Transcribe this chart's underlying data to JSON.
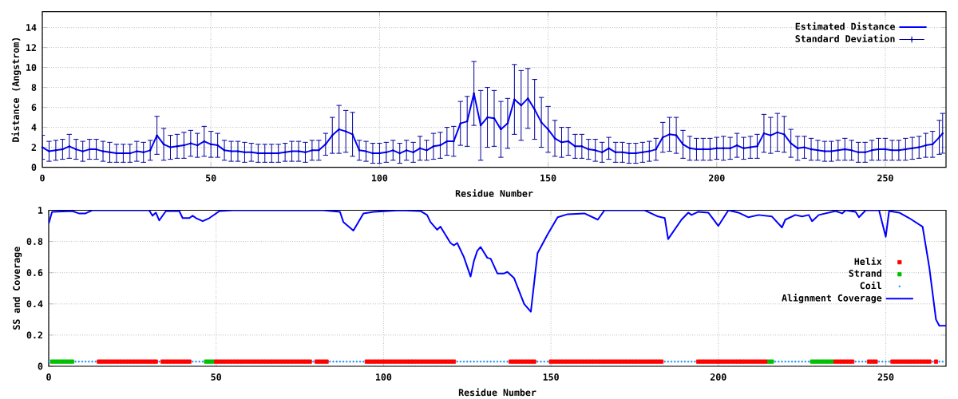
{
  "chart_data": [
    {
      "type": "line",
      "xlabel": "Residue Number",
      "ylabel": "Distance (Angstrom)",
      "xlim": [
        0,
        268
      ],
      "ylim": [
        0,
        15.6
      ],
      "xticks": [
        0,
        50,
        100,
        150,
        200,
        250
      ],
      "yticks": [
        0,
        2,
        4,
        6,
        8,
        10,
        12,
        14
      ],
      "grid": true,
      "legend": "top right",
      "x": [
        0,
        2,
        4,
        6,
        8,
        10,
        12,
        14,
        16,
        18,
        20,
        22,
        24,
        26,
        28,
        30,
        32,
        34,
        36,
        38,
        40,
        42,
        44,
        46,
        48,
        50,
        52,
        54,
        56,
        58,
        60,
        62,
        64,
        66,
        68,
        70,
        72,
        74,
        76,
        78,
        80,
        82,
        84,
        86,
        88,
        90,
        92,
        94,
        96,
        98,
        100,
        102,
        104,
        106,
        108,
        110,
        112,
        114,
        116,
        118,
        120,
        122,
        124,
        126,
        128,
        130,
        132,
        134,
        136,
        138,
        140,
        142,
        144,
        146,
        148,
        150,
        152,
        154,
        156,
        158,
        160,
        162,
        164,
        166,
        168,
        170,
        172,
        174,
        176,
        178,
        180,
        182,
        184,
        186,
        188,
        190,
        192,
        194,
        196,
        198,
        200,
        202,
        204,
        206,
        208,
        210,
        212,
        214,
        216,
        218,
        220,
        222,
        224,
        226,
        228,
        230,
        232,
        234,
        236,
        238,
        240,
        242,
        244,
        246,
        248,
        250,
        252,
        254,
        256,
        258,
        260,
        262,
        264,
        266,
        267
      ],
      "series": [
        {
          "name": "Estimated Distance",
          "color": "#0000ff",
          "values": [
            2.0,
            1.6,
            1.7,
            1.8,
            2.1,
            1.8,
            1.6,
            1.8,
            1.8,
            1.6,
            1.5,
            1.4,
            1.4,
            1.4,
            1.6,
            1.5,
            1.7,
            3.2,
            2.3,
            2.0,
            2.1,
            2.2,
            2.4,
            2.2,
            2.6,
            2.3,
            2.2,
            1.7,
            1.6,
            1.6,
            1.5,
            1.5,
            1.4,
            1.4,
            1.4,
            1.4,
            1.5,
            1.6,
            1.6,
            1.5,
            1.7,
            1.7,
            2.3,
            3.2,
            3.8,
            3.6,
            3.3,
            1.7,
            1.6,
            1.4,
            1.4,
            1.5,
            1.7,
            1.4,
            1.7,
            1.5,
            1.9,
            1.7,
            2.1,
            2.2,
            2.6,
            2.6,
            4.4,
            4.6,
            7.4,
            4.2,
            5.0,
            4.9,
            3.8,
            4.4,
            6.8,
            6.2,
            6.9,
            5.8,
            4.5,
            3.8,
            2.9,
            2.5,
            2.6,
            2.1,
            2.1,
            1.8,
            1.7,
            1.5,
            1.9,
            1.5,
            1.5,
            1.4,
            1.4,
            1.5,
            1.6,
            1.8,
            3.0,
            3.3,
            3.2,
            2.3,
            1.9,
            1.8,
            1.8,
            1.8,
            1.9,
            1.9,
            1.9,
            2.2,
            1.9,
            2.0,
            2.1,
            3.4,
            3.2,
            3.5,
            3.3,
            2.4,
            1.9,
            2.0,
            1.8,
            1.7,
            1.6,
            1.6,
            1.7,
            1.8,
            1.7,
            1.5,
            1.5,
            1.7,
            1.8,
            1.8,
            1.7,
            1.7,
            1.8,
            1.9,
            2.0,
            2.2,
            2.3,
            3.0,
            3.4
          ]
        },
        {
          "name": "Standard Deviation",
          "type": "scatter",
          "marker": "circle",
          "color": "#000099",
          "values": [
            2.0,
            1.6,
            1.7,
            1.8,
            2.1,
            1.8,
            1.6,
            1.8,
            1.8,
            1.6,
            1.5,
            1.4,
            1.4,
            1.4,
            1.6,
            1.5,
            1.7,
            3.2,
            2.3,
            2.0,
            2.1,
            2.2,
            2.4,
            2.2,
            2.6,
            2.3,
            2.2,
            1.7,
            1.6,
            1.6,
            1.5,
            1.5,
            1.4,
            1.4,
            1.4,
            1.4,
            1.5,
            1.6,
            1.6,
            1.5,
            1.7,
            1.7,
            2.3,
            3.2,
            3.8,
            3.6,
            3.3,
            1.7,
            1.6,
            1.4,
            1.4,
            1.5,
            1.7,
            1.4,
            1.7,
            1.5,
            1.9,
            1.7,
            2.1,
            2.2,
            2.6,
            2.6,
            4.4,
            4.6,
            7.4,
            4.2,
            5.0,
            4.9,
            3.8,
            4.4,
            6.8,
            6.2,
            6.9,
            5.8,
            4.5,
            3.8,
            2.9,
            2.5,
            2.6,
            2.1,
            2.1,
            1.8,
            1.7,
            1.5,
            1.9,
            1.5,
            1.5,
            1.4,
            1.4,
            1.5,
            1.6,
            1.8,
            3.0,
            3.3,
            3.2,
            2.3,
            1.9,
            1.8,
            1.8,
            1.8,
            1.9,
            1.9,
            1.9,
            2.2,
            1.9,
            2.0,
            2.1,
            3.4,
            3.2,
            3.5,
            3.3,
            2.4,
            1.9,
            2.0,
            1.8,
            1.7,
            1.6,
            1.6,
            1.7,
            1.8,
            1.7,
            1.5,
            1.5,
            1.7,
            1.8,
            1.8,
            1.7,
            1.7,
            1.8,
            1.9,
            2.0,
            2.2,
            2.3,
            3.0,
            3.4
          ],
          "errors": [
            1.2,
            1.0,
            1.0,
            1.0,
            1.2,
            1.0,
            1.0,
            1.0,
            1.0,
            1.0,
            1.0,
            0.9,
            0.9,
            0.9,
            1.0,
            1.0,
            1.0,
            1.9,
            1.6,
            1.2,
            1.2,
            1.3,
            1.3,
            1.2,
            1.5,
            1.3,
            1.2,
            1.0,
            1.0,
            1.0,
            1.0,
            0.9,
            0.9,
            0.9,
            0.9,
            0.9,
            0.9,
            1.0,
            1.0,
            1.0,
            1.0,
            1.0,
            1.1,
            1.8,
            2.4,
            2.1,
            2.2,
            1.0,
            1.0,
            1.0,
            1.0,
            1.0,
            1.0,
            1.0,
            1.0,
            1.0,
            1.2,
            1.0,
            1.3,
            1.3,
            1.4,
            1.5,
            2.2,
            2.5,
            3.2,
            3.5,
            3.0,
            2.8,
            2.8,
            2.5,
            3.5,
            3.5,
            3.0,
            3.0,
            2.5,
            2.3,
            1.8,
            1.5,
            1.4,
            1.2,
            1.2,
            1.0,
            1.1,
            1.0,
            1.1,
            1.0,
            1.0,
            1.0,
            1.0,
            1.0,
            1.0,
            1.1,
            1.5,
            1.7,
            1.8,
            1.4,
            1.2,
            1.1,
            1.1,
            1.1,
            1.1,
            1.2,
            1.1,
            1.2,
            1.1,
            1.1,
            1.2,
            1.9,
            1.8,
            1.9,
            1.8,
            1.4,
            1.2,
            1.1,
            1.1,
            1.0,
            1.0,
            1.0,
            1.0,
            1.1,
            1.0,
            1.0,
            1.0,
            1.0,
            1.1,
            1.1,
            1.0,
            1.0,
            1.1,
            1.1,
            1.1,
            1.2,
            1.3,
            1.7,
            2.0
          ]
        }
      ]
    },
    {
      "type": "line",
      "xlabel": "Residue Number",
      "ylabel": "SS and Coverage",
      "xlim": [
        0,
        268
      ],
      "ylim": [
        0,
        1
      ],
      "xticks": [
        0,
        50,
        100,
        150,
        200,
        250
      ],
      "yticks": [
        0,
        0.2,
        0.4,
        0.6,
        0.8,
        1
      ],
      "grid": true,
      "legend": "right",
      "series": [
        {
          "name": "Helix",
          "type": "scatter",
          "marker": "square",
          "color": "#ff0000",
          "x": [
            15,
            16,
            17,
            18,
            19,
            20,
            21,
            22,
            23,
            24,
            25,
            26,
            27,
            28,
            29,
            30,
            31,
            32,
            34,
            35,
            36,
            37,
            38,
            39,
            40,
            41,
            42,
            50,
            51,
            52,
            53,
            54,
            55,
            56,
            57,
            58,
            59,
            60,
            61,
            62,
            63,
            64,
            65,
            66,
            67,
            68,
            69,
            70,
            71,
            72,
            73,
            74,
            75,
            76,
            77,
            78,
            80,
            81,
            82,
            83,
            95,
            96,
            97,
            98,
            99,
            100,
            101,
            102,
            103,
            104,
            105,
            106,
            107,
            108,
            109,
            110,
            111,
            112,
            113,
            114,
            115,
            116,
            117,
            118,
            119,
            120,
            121,
            138,
            139,
            140,
            141,
            142,
            143,
            144,
            145,
            150,
            151,
            152,
            153,
            154,
            155,
            156,
            157,
            158,
            159,
            160,
            161,
            162,
            163,
            164,
            165,
            166,
            167,
            168,
            169,
            170,
            171,
            172,
            173,
            174,
            175,
            176,
            177,
            178,
            179,
            180,
            181,
            182,
            183,
            194,
            195,
            196,
            197,
            198,
            199,
            200,
            201,
            202,
            203,
            204,
            205,
            206,
            207,
            208,
            209,
            210,
            211,
            212,
            213,
            214,
            235,
            236,
            237,
            238,
            239,
            240,
            245,
            246,
            247,
            252,
            253,
            254,
            255,
            256,
            257,
            258,
            259,
            260,
            261,
            262,
            263,
            265
          ],
          "values": [
            0.03,
            0.03,
            0.03,
            0.03,
            0.03,
            0.03,
            0.03,
            0.03,
            0.03,
            0.03,
            0.03,
            0.03,
            0.03,
            0.03,
            0.03,
            0.03,
            0.03,
            0.03,
            0.03,
            0.03,
            0.03,
            0.03,
            0.03,
            0.03,
            0.03,
            0.03,
            0.03,
            0.03,
            0.03,
            0.03,
            0.03,
            0.03,
            0.03,
            0.03,
            0.03,
            0.03,
            0.03,
            0.03,
            0.03,
            0.03,
            0.03,
            0.03,
            0.03,
            0.03,
            0.03,
            0.03,
            0.03,
            0.03,
            0.03,
            0.03,
            0.03,
            0.03,
            0.03,
            0.03,
            0.03,
            0.03,
            0.03,
            0.03,
            0.03,
            0.03,
            0.03,
            0.03,
            0.03,
            0.03,
            0.03,
            0.03,
            0.03,
            0.03,
            0.03,
            0.03,
            0.03,
            0.03,
            0.03,
            0.03,
            0.03,
            0.03,
            0.03,
            0.03,
            0.03,
            0.03,
            0.03,
            0.03,
            0.03,
            0.03,
            0.03,
            0.03,
            0.03,
            0.03,
            0.03,
            0.03,
            0.03,
            0.03,
            0.03,
            0.03,
            0.03,
            0.03,
            0.03,
            0.03,
            0.03,
            0.03,
            0.03,
            0.03,
            0.03,
            0.03,
            0.03,
            0.03,
            0.03,
            0.03,
            0.03,
            0.03,
            0.03,
            0.03,
            0.03,
            0.03,
            0.03,
            0.03,
            0.03,
            0.03,
            0.03,
            0.03,
            0.03,
            0.03,
            0.03,
            0.03,
            0.03,
            0.03,
            0.03,
            0.03,
            0.03,
            0.03,
            0.03,
            0.03,
            0.03,
            0.03,
            0.03,
            0.03,
            0.03,
            0.03,
            0.03,
            0.03,
            0.03,
            0.03,
            0.03,
            0.03,
            0.03,
            0.03,
            0.03,
            0.03,
            0.03,
            0.03,
            0.03,
            0.03,
            0.03,
            0.03,
            0.03,
            0.03,
            0.03,
            0.03,
            0.03,
            0.03,
            0.03,
            0.03,
            0.03,
            0.03,
            0.03,
            0.03,
            0.03,
            0.03,
            0.03,
            0.03,
            0.03,
            0.03
          ]
        },
        {
          "name": "Strand",
          "type": "scatter",
          "marker": "square",
          "color": "#00c000",
          "x": [
            1,
            2,
            3,
            4,
            5,
            6,
            7,
            47,
            48,
            49,
            215,
            216,
            228,
            229,
            230,
            231,
            232,
            233,
            234
          ],
          "values": [
            0.03,
            0.03,
            0.03,
            0.03,
            0.03,
            0.03,
            0.03,
            0.03,
            0.03,
            0.03,
            0.03,
            0.03,
            0.03,
            0.03,
            0.03,
            0.03,
            0.03,
            0.03,
            0.03
          ]
        },
        {
          "name": "Coil",
          "type": "scatter",
          "marker": "circle",
          "color": "#1e90ff",
          "x": [
            0,
            8,
            9,
            10,
            11,
            12,
            13,
            14,
            33,
            43,
            44,
            45,
            46,
            79,
            84,
            85,
            86,
            87,
            88,
            89,
            90,
            91,
            92,
            93,
            94,
            122,
            123,
            124,
            125,
            126,
            127,
            128,
            129,
            130,
            131,
            132,
            133,
            134,
            135,
            136,
            137,
            146,
            147,
            148,
            149,
            184,
            185,
            186,
            187,
            188,
            189,
            190,
            191,
            192,
            193,
            217,
            218,
            219,
            220,
            221,
            222,
            223,
            224,
            225,
            226,
            227,
            241,
            242,
            243,
            244,
            248,
            249,
            250,
            251,
            264,
            266,
            267
          ],
          "values": [
            0.03,
            0.03,
            0.03,
            0.03,
            0.03,
            0.03,
            0.03,
            0.03,
            0.03,
            0.03,
            0.03,
            0.03,
            0.03,
            0.03,
            0.03,
            0.03,
            0.03,
            0.03,
            0.03,
            0.03,
            0.03,
            0.03,
            0.03,
            0.03,
            0.03,
            0.03,
            0.03,
            0.03,
            0.03,
            0.03,
            0.03,
            0.03,
            0.03,
            0.03,
            0.03,
            0.03,
            0.03,
            0.03,
            0.03,
            0.03,
            0.03,
            0.03,
            0.03,
            0.03,
            0.03,
            0.03,
            0.03,
            0.03,
            0.03,
            0.03,
            0.03,
            0.03,
            0.03,
            0.03,
            0.03,
            0.03,
            0.03,
            0.03,
            0.03,
            0.03,
            0.03,
            0.03,
            0.03,
            0.03,
            0.03,
            0.03,
            0.03,
            0.03,
            0.03,
            0.03,
            0.03,
            0.03,
            0.03,
            0.03,
            0.03,
            0.03,
            0.03
          ]
        },
        {
          "name": "Alignment Coverage",
          "color": "#0000ff",
          "x": [
            0,
            1,
            7,
            9,
            11,
            13,
            30,
            31,
            32,
            33,
            35,
            39,
            40,
            42,
            43,
            44,
            46,
            48,
            51,
            55,
            82,
            87,
            88,
            91,
            94,
            97,
            105,
            111,
            113,
            114,
            116,
            117,
            120,
            121,
            122,
            124,
            126,
            127,
            128,
            129,
            131,
            132,
            134,
            136,
            137,
            139,
            142,
            144,
            146,
            149,
            152,
            155,
            160,
            164,
            166,
            178,
            182,
            184,
            185,
            189,
            191,
            192,
            194,
            197,
            200,
            203,
            206,
            209,
            212,
            216,
            219,
            220,
            223,
            225,
            227,
            228,
            230,
            235,
            237,
            238,
            241,
            242,
            244,
            248,
            250,
            251,
            254,
            257,
            261,
            263,
            265,
            266,
            268
          ],
          "values": [
            0.915,
            0.99,
            0.995,
            0.98,
            0.98,
            1.0,
            1.0,
            0.965,
            0.985,
            0.935,
            0.995,
            0.995,
            0.95,
            0.95,
            0.965,
            0.95,
            0.93,
            0.95,
            0.995,
            1.0,
            1.0,
            0.99,
            0.925,
            0.87,
            0.98,
            0.99,
            1.0,
            0.995,
            0.97,
            0.925,
            0.875,
            0.895,
            0.79,
            0.775,
            0.79,
            0.7,
            0.575,
            0.675,
            0.74,
            0.765,
            0.695,
            0.69,
            0.595,
            0.595,
            0.605,
            0.565,
            0.4,
            0.35,
            0.725,
            0.845,
            0.955,
            0.975,
            0.98,
            0.94,
            1.0,
            1.0,
            0.96,
            0.95,
            0.815,
            0.94,
            0.985,
            0.97,
            0.99,
            0.985,
            0.9,
            1.0,
            0.985,
            0.955,
            0.97,
            0.96,
            0.89,
            0.94,
            0.97,
            0.96,
            0.97,
            0.93,
            0.97,
            0.995,
            0.98,
            1.0,
            0.99,
            0.955,
            1.0,
            1.0,
            0.83,
            0.995,
            0.985,
            0.95,
            0.895,
            0.635,
            0.3,
            0.26,
            0.26
          ]
        }
      ]
    }
  ]
}
